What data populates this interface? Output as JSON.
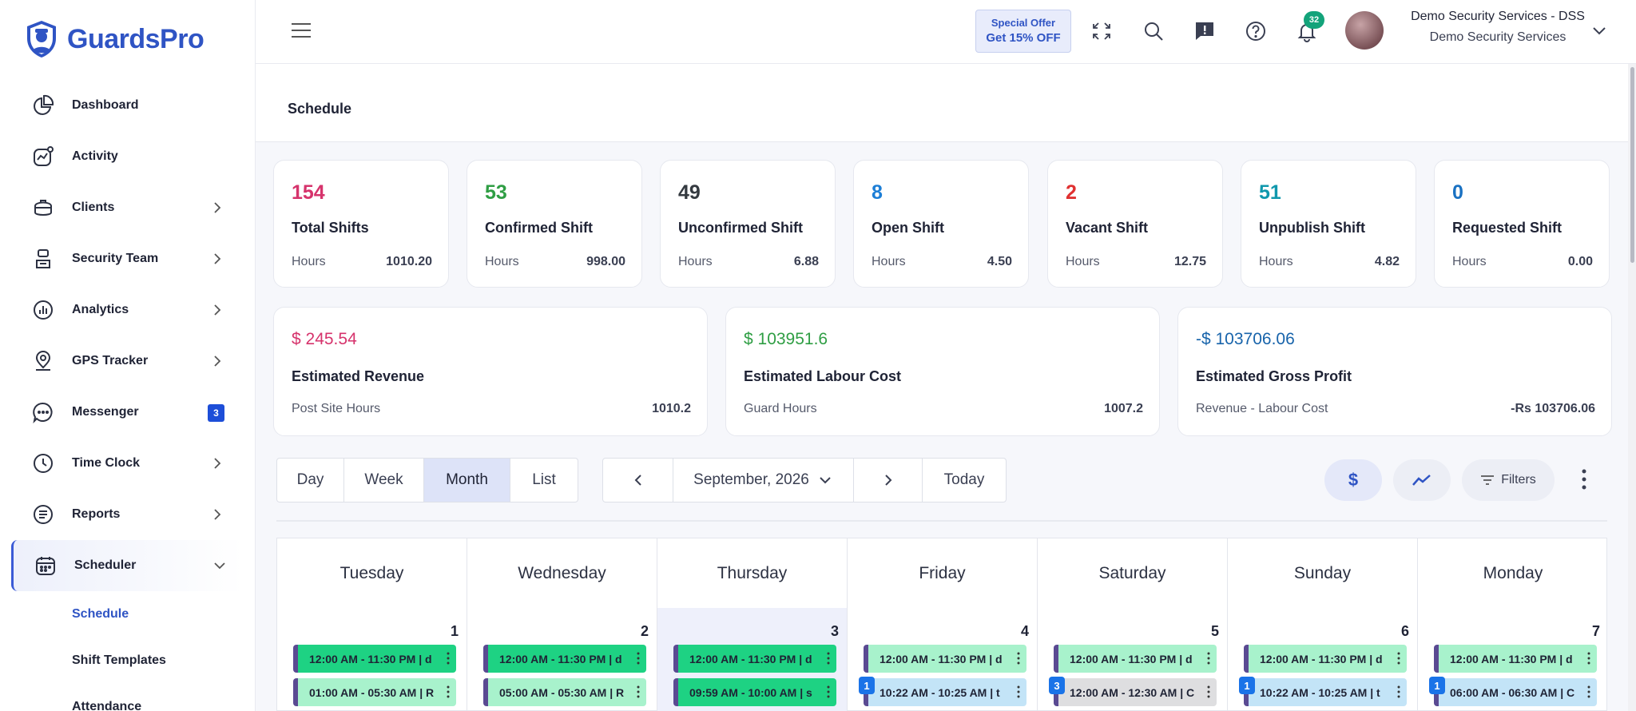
{
  "brand": {
    "name": "GuardsPro"
  },
  "sidebar": {
    "items": [
      {
        "label": "Dashboard"
      },
      {
        "label": "Activity"
      },
      {
        "label": "Clients"
      },
      {
        "label": "Security Team"
      },
      {
        "label": "Analytics"
      },
      {
        "label": "GPS Tracker"
      },
      {
        "label": "Messenger",
        "badge": "3"
      },
      {
        "label": "Time Clock"
      },
      {
        "label": "Reports"
      },
      {
        "label": "Scheduler"
      }
    ],
    "sub_items": [
      {
        "label": "Schedule"
      },
      {
        "label": "Shift Templates"
      },
      {
        "label": "Attendance"
      }
    ]
  },
  "topbar": {
    "offer_line1": "Special Offer",
    "offer_line2": "Get 15% OFF",
    "notification_count": "32",
    "user_name": "Demo Security Services - DSS",
    "user_org": "Demo Security Services"
  },
  "page": {
    "title": "Schedule"
  },
  "stats": [
    {
      "value": "154",
      "label": "Total Shifts",
      "hours_label": "Hours",
      "hours": "1010.20",
      "color": "#d6336c"
    },
    {
      "value": "53",
      "label": "Confirmed Shift",
      "hours_label": "Hours",
      "hours": "998.00",
      "color": "#2f9e44"
    },
    {
      "value": "49",
      "label": "Unconfirmed Shift",
      "hours_label": "Hours",
      "hours": "6.88",
      "color": "#343a40"
    },
    {
      "value": "8",
      "label": "Open Shift",
      "hours_label": "Hours",
      "hours": "4.50",
      "color": "#1c7ed6"
    },
    {
      "value": "2",
      "label": "Vacant Shift",
      "hours_label": "Hours",
      "hours": "12.75",
      "color": "#e03131"
    },
    {
      "value": "51",
      "label": "Unpublish Shift",
      "hours_label": "Hours",
      "hours": "4.82",
      "color": "#1098ad"
    },
    {
      "value": "0",
      "label": "Requested Shift",
      "hours_label": "Hours",
      "hours": "0.00",
      "color": "#1971c2"
    }
  ],
  "financials": [
    {
      "amount": "$ 245.54",
      "label": "Estimated Revenue",
      "sub_label": "Post Site Hours",
      "sub_value": "1010.2",
      "color": "#d6336c"
    },
    {
      "amount": "$ 103951.6",
      "label": "Estimated Labour Cost",
      "sub_label": "Guard Hours",
      "sub_value": "1007.2",
      "color": "#2f9e44"
    },
    {
      "amount": "-$ 103706.06",
      "label": "Estimated Gross Profit",
      "sub_label": "Revenue - Labour Cost",
      "sub_value": "-Rs 103706.06",
      "color": "#1864ab"
    }
  ],
  "toolbar": {
    "views": [
      "Day",
      "Week",
      "Month",
      "List"
    ],
    "active_view": "Month",
    "period": "September, 2026",
    "today": "Today",
    "dollar_symbol": "$",
    "filters": "Filters"
  },
  "calendar": {
    "days": [
      {
        "name": "Tuesday",
        "num": "1",
        "shifts": [
          "12:00 AM - 11:30 PM | d",
          "01:00 AM - 05:30 AM | R"
        ]
      },
      {
        "name": "Wednesday",
        "num": "2",
        "shifts": [
          "12:00 AM - 11:30 PM | d",
          "05:00 AM - 05:30 AM | R"
        ]
      },
      {
        "name": "Thursday",
        "num": "3",
        "shifts": [
          "12:00 AM - 11:30 PM | d",
          "09:59 AM - 10:00 AM | s"
        ]
      },
      {
        "name": "Friday",
        "num": "4",
        "shifts": [
          "12:00 AM - 11:30 PM | d",
          "10:22 AM - 10:25 AM | t"
        ],
        "count": "1"
      },
      {
        "name": "Saturday",
        "num": "5",
        "shifts": [
          "12:00 AM - 11:30 PM | d",
          "12:00 AM - 12:30 AM | C"
        ],
        "count": "3"
      },
      {
        "name": "Sunday",
        "num": "6",
        "shifts": [
          "12:00 AM - 11:30 PM | d",
          "10:22 AM - 10:25 AM | t"
        ],
        "count": "1"
      },
      {
        "name": "Monday",
        "num": "7",
        "shifts": [
          "12:00 AM - 11:30 PM | d",
          "06:00 AM - 06:30 AM | C"
        ],
        "count": "1"
      }
    ]
  },
  "colors": {
    "brand": "#2f54c4",
    "shift_green": "#1ed283",
    "shift_light_green": "#a8f2cc",
    "shift_light_blue": "#c3e4f7",
    "shift_grey": "#dedee0"
  }
}
